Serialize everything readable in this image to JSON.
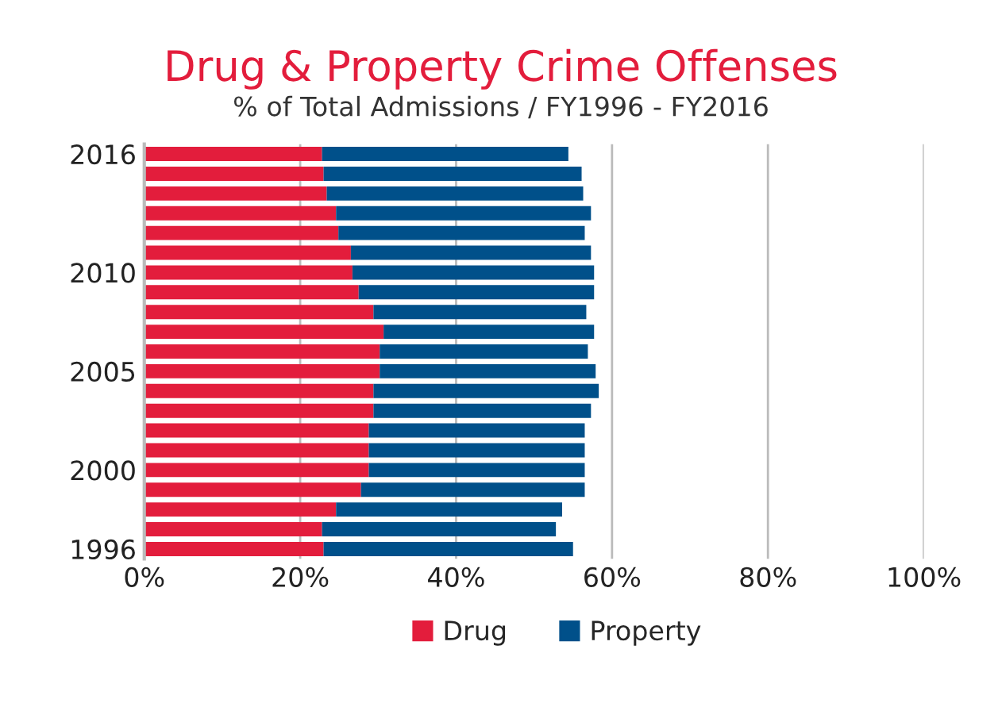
{
  "chart_data": {
    "type": "bar",
    "orientation": "horizontal",
    "stacked": true,
    "title": "Drug & Property Crime Offenses",
    "subtitle": "% of Total Admissions / FY1996 - FY2016",
    "categories": [
      "2016",
      null,
      null,
      null,
      null,
      null,
      "2010",
      null,
      null,
      null,
      null,
      "2005",
      null,
      null,
      null,
      null,
      "2000",
      null,
      null,
      null,
      "1996"
    ],
    "series": [
      {
        "name": "Drug",
        "color": "#e31d3c",
        "values": [
          22.8,
          23.0,
          23.4,
          24.6,
          24.9,
          26.5,
          26.7,
          27.5,
          29.4,
          30.7,
          30.2,
          30.2,
          29.4,
          29.4,
          28.8,
          28.8,
          28.8,
          27.8,
          24.6,
          22.8,
          23.0
        ]
      },
      {
        "name": "Property",
        "color": "#00508a",
        "values": [
          31.6,
          33.1,
          32.9,
          32.7,
          31.6,
          30.8,
          31.0,
          30.2,
          27.3,
          27.0,
          26.7,
          27.7,
          28.9,
          27.9,
          27.7,
          27.7,
          27.7,
          28.7,
          29.0,
          30.0,
          32.0
        ]
      }
    ],
    "xlim": [
      0,
      100
    ],
    "xticks": [
      {
        "value": 0,
        "label": "0%"
      },
      {
        "value": 20,
        "label": "20%"
      },
      {
        "value": 40,
        "label": "40%"
      },
      {
        "value": 60,
        "label": "60%"
      },
      {
        "value": 80,
        "label": "80%"
      },
      {
        "value": 100,
        "label": "100%"
      }
    ],
    "grid": "x",
    "legend": "bottom"
  }
}
